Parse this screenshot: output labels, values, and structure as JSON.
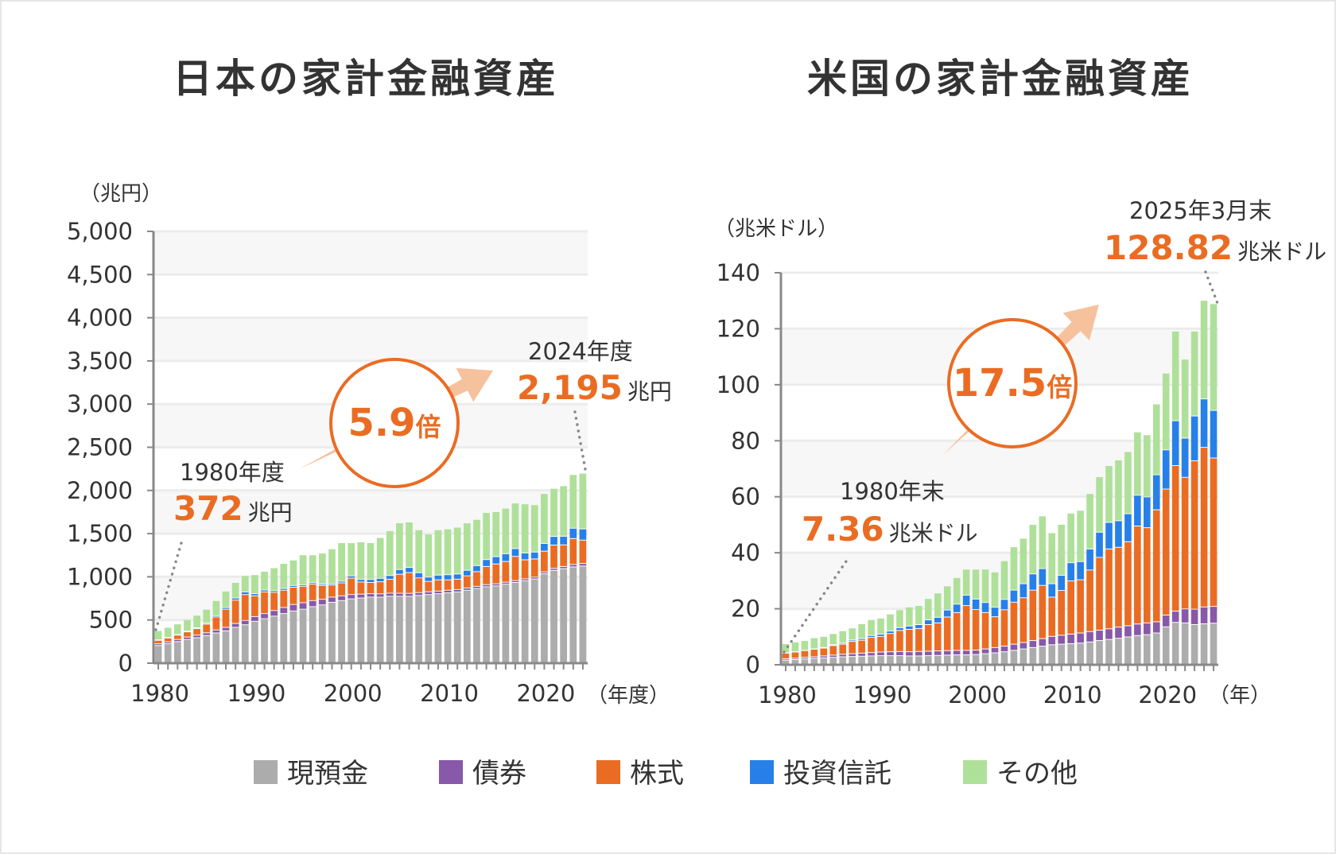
{
  "colors": {
    "cash": "#acacac",
    "bonds": "#8759a8",
    "stocks": "#ea6c23",
    "funds": "#2680e8",
    "other": "#afe09a",
    "accent": "#ea6c23",
    "arrow": "#f6c29d"
  },
  "legend": [
    {
      "key": "cash",
      "label": "現預金"
    },
    {
      "key": "bonds",
      "label": "債券"
    },
    {
      "key": "stocks",
      "label": "株式"
    },
    {
      "key": "funds",
      "label": "投資信託"
    },
    {
      "key": "other",
      "label": "その他"
    }
  ],
  "chart_data": [
    {
      "type": "bar",
      "stacked": true,
      "title": "日本の家計金融資産",
      "ylabel": "（兆円）",
      "xlabel": "（年度）",
      "ylim": [
        0,
        5000
      ],
      "yticks": [
        "0",
        "500",
        "1,000",
        "1,500",
        "2,000",
        "2,500",
        "3,000",
        "3,500",
        "4,000",
        "4,500",
        "5,000"
      ],
      "xticks": [
        "1980",
        "1990",
        "2000",
        "2010",
        "2020"
      ],
      "x": [
        1980,
        1981,
        1982,
        1983,
        1984,
        1985,
        1986,
        1987,
        1988,
        1989,
        1990,
        1991,
        1992,
        1993,
        1994,
        1995,
        1996,
        1997,
        1998,
        1999,
        2000,
        2001,
        2002,
        2003,
        2004,
        2005,
        2006,
        2007,
        2008,
        2009,
        2010,
        2011,
        2012,
        2013,
        2014,
        2015,
        2016,
        2017,
        2018,
        2019,
        2020,
        2021,
        2022,
        2023,
        2024
      ],
      "series": [
        {
          "key": "cash",
          "name": "現預金",
          "values": [
            200,
            220,
            245,
            270,
            290,
            315,
            345,
            370,
            410,
            440,
            480,
            510,
            540,
            570,
            600,
            620,
            650,
            670,
            700,
            720,
            740,
            750,
            760,
            760,
            770,
            770,
            770,
            780,
            790,
            800,
            810,
            820,
            840,
            860,
            880,
            890,
            910,
            930,
            950,
            970,
            1030,
            1070,
            1090,
            1110,
            1120
          ]
        },
        {
          "key": "bonds",
          "name": "債券",
          "values": [
            20,
            22,
            25,
            28,
            30,
            32,
            35,
            40,
            45,
            50,
            55,
            60,
            65,
            70,
            75,
            75,
            70,
            65,
            60,
            55,
            50,
            45,
            40,
            38,
            36,
            35,
            34,
            33,
            32,
            30,
            30,
            28,
            26,
            25,
            25,
            24,
            23,
            22,
            22,
            22,
            22,
            23,
            25,
            28,
            30
          ]
        },
        {
          "key": "stocks",
          "name": "株式",
          "values": [
            40,
            45,
            50,
            60,
            75,
            100,
            150,
            210,
            270,
            300,
            240,
            250,
            210,
            200,
            200,
            190,
            190,
            160,
            140,
            150,
            190,
            140,
            130,
            140,
            160,
            220,
            240,
            170,
            120,
            130,
            120,
            120,
            140,
            170,
            210,
            230,
            240,
            280,
            220,
            210,
            240,
            270,
            250,
            300,
            270
          ]
        },
        {
          "key": "funds",
          "name": "投資信託",
          "values": [
            5,
            5,
            6,
            8,
            10,
            12,
            15,
            20,
            25,
            30,
            25,
            22,
            20,
            20,
            20,
            18,
            18,
            15,
            15,
            20,
            25,
            30,
            35,
            40,
            45,
            55,
            60,
            60,
            50,
            55,
            60,
            60,
            65,
            70,
            80,
            85,
            90,
            90,
            80,
            80,
            90,
            100,
            100,
            120,
            130
          ]
        },
        {
          "key": "other",
          "name": "その他",
          "values": [
            107,
            118,
            124,
            134,
            145,
            161,
            175,
            190,
            180,
            190,
            220,
            218,
            265,
            290,
            295,
            347,
            322,
            360,
            405,
            445,
            385,
            435,
            425,
            472,
            519,
            540,
            526,
            497,
            498,
            525,
            530,
            542,
            549,
            535,
            545,
            521,
            527,
            528,
            568,
            548,
            578,
            557,
            585,
            622,
            645
          ]
        }
      ],
      "annotations": {
        "start_label": "1980年度",
        "start_value": "372",
        "start_unit": "兆円",
        "end_label": "2024年度",
        "end_value": "2,195",
        "end_unit": "兆円",
        "multiple": "5.9",
        "multiple_unit": "倍"
      }
    },
    {
      "type": "bar",
      "stacked": true,
      "title": "米国の家計金融資産",
      "ylabel": "（兆米ドル）",
      "xlabel": "（年）",
      "ylim": [
        0,
        140
      ],
      "yticks": [
        "0",
        "20",
        "40",
        "60",
        "80",
        "100",
        "120",
        "140"
      ],
      "xticks": [
        "1980",
        "1990",
        "2000",
        "2010",
        "2020"
      ],
      "x": [
        "1980",
        "1981",
        "1982",
        "1983",
        "1984",
        "1985",
        "1986",
        "1987",
        "1988",
        "1989",
        "1990",
        "1991",
        "1992",
        "1993",
        "1994",
        "1995",
        "1996",
        "1997",
        "1998",
        "1999",
        "2000",
        "2001",
        "2002",
        "2003",
        "2004",
        "2005",
        "2006",
        "2007",
        "2008",
        "2009",
        "2010",
        "2011",
        "2012",
        "2013",
        "2014",
        "2015",
        "2016",
        "2017",
        "2018",
        "2019",
        "2020",
        "2021",
        "2022",
        "2023",
        "2024",
        "2025/3"
      ],
      "series": [
        {
          "key": "cash",
          "name": "現預金",
          "values": [
            1.5,
            1.7,
            1.9,
            2.1,
            2.3,
            2.5,
            2.7,
            2.8,
            2.9,
            3.0,
            3.1,
            3.1,
            3.1,
            3.0,
            3.0,
            3.1,
            3.2,
            3.3,
            3.4,
            3.4,
            3.5,
            3.8,
            4.1,
            4.5,
            5.0,
            5.5,
            6.0,
            6.5,
            7.0,
            7.2,
            7.4,
            7.6,
            8.0,
            8.5,
            8.9,
            9.3,
            9.8,
            10.3,
            10.6,
            11.2,
            13.4,
            15.0,
            14.8,
            14.2,
            14.5,
            14.7
          ]
        },
        {
          "key": "bonds",
          "name": "債券",
          "values": [
            0.5,
            0.5,
            0.6,
            0.6,
            0.7,
            0.8,
            0.9,
            1.0,
            1.1,
            1.2,
            1.3,
            1.4,
            1.5,
            1.5,
            1.6,
            1.6,
            1.6,
            1.6,
            1.6,
            1.6,
            1.6,
            1.7,
            1.9,
            2.0,
            2.2,
            2.3,
            2.5,
            2.7,
            3.0,
            3.2,
            3.4,
            3.6,
            3.7,
            3.7,
            3.8,
            4.0,
            4.0,
            4.1,
            4.2,
            4.0,
            4.2,
            4.0,
            5.0,
            5.5,
            6.0,
            6.0
          ]
        },
        {
          "key": "stocks",
          "name": "株式",
          "values": [
            2.0,
            2.2,
            2.4,
            2.7,
            2.8,
            3.4,
            3.6,
            4.4,
            4.6,
            5.4,
            5.6,
            6.5,
            7.5,
            8.0,
            8.2,
            9.5,
            10.0,
            12.0,
            13.5,
            16.0,
            14.5,
            13.0,
            11.0,
            13.0,
            15.0,
            16.0,
            18.0,
            19.0,
            14.0,
            16.0,
            19.0,
            19.0,
            22.0,
            26.0,
            28.5,
            28.5,
            30.0,
            35.0,
            34.0,
            40.0,
            45.0,
            52.0,
            47.0,
            53.0,
            57.0,
            53.0
          ]
        },
        {
          "key": "funds",
          "name": "投資信託",
          "values": [
            0.1,
            0.1,
            0.1,
            0.1,
            0.2,
            0.3,
            0.4,
            0.5,
            0.6,
            0.7,
            0.8,
            0.9,
            1.0,
            1.2,
            1.4,
            1.7,
            2.0,
            2.5,
            3.0,
            3.7,
            3.7,
            3.6,
            3.4,
            3.7,
            4.3,
            5.0,
            5.8,
            6.0,
            4.8,
            5.4,
            6.5,
            6.5,
            7.5,
            9.0,
            9.5,
            9.5,
            10.0,
            11.0,
            11.0,
            12.5,
            14.0,
            16.0,
            14.0,
            16.0,
            17.3,
            17.0
          ]
        },
        {
          "key": "other",
          "name": "その他",
          "values": [
            3.26,
            3.5,
            3.5,
            4.0,
            4.0,
            4.0,
            4.4,
            4.3,
            5.3,
            5.7,
            5.7,
            6.1,
            6.4,
            6.8,
            6.8,
            7.6,
            8.7,
            8.6,
            9.5,
            9.3,
            10.7,
            11.9,
            12.6,
            13.8,
            15.5,
            16.2,
            17.7,
            18.8,
            18.2,
            18.2,
            17.7,
            18.3,
            19.8,
            19.8,
            20.3,
            21.7,
            22.2,
            22.6,
            22.2,
            25.3,
            27.4,
            32.0,
            28.2,
            30.3,
            35.2,
            38.12
          ]
        }
      ],
      "annotations": {
        "start_label": "1980年末",
        "start_value": "7.36",
        "start_unit": "兆米ドル",
        "end_label": "2025年3月末",
        "end_value": "128.82",
        "end_unit": "兆米ドル",
        "multiple": "17.5",
        "multiple_unit": "倍"
      }
    }
  ]
}
